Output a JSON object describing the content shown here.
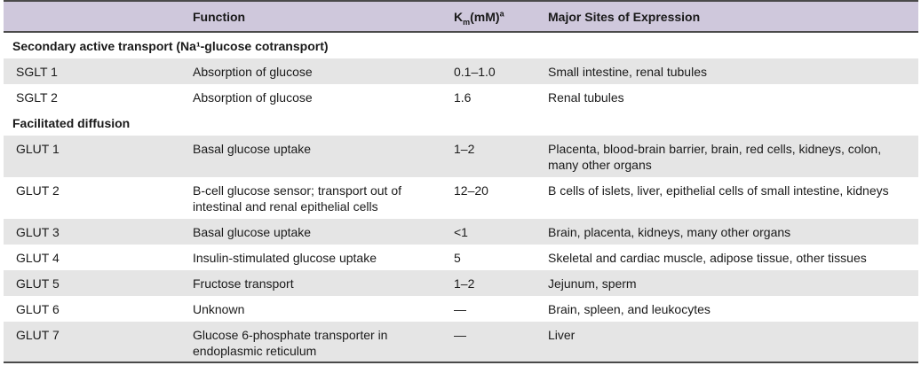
{
  "headers": {
    "col1": "",
    "col2": "Function",
    "col3_main": "K",
    "col3_sub": "m",
    "col3_rest": "(mM)",
    "col3_sup": "a",
    "col4": "Major Sites of Expression"
  },
  "sections": [
    {
      "title": "Secondary active transport (Na¹-glucose cotransport)",
      "rows": [
        {
          "name": "SGLT 1",
          "function": "Absorption of glucose",
          "km": "0.1–1.0",
          "sites": "Small intestine, renal tubules"
        },
        {
          "name": "SGLT 2",
          "function": "Absorption of glucose",
          "km": "1.6",
          "sites": "Renal tubules"
        }
      ]
    },
    {
      "title": "Facilitated diffusion",
      "rows": [
        {
          "name": "GLUT 1",
          "function": "Basal glucose uptake",
          "km": "1–2",
          "sites": "Placenta, blood-brain barrier, brain, red cells, kidneys, colon, many other organs"
        },
        {
          "name": "GLUT 2",
          "function": "B-cell glucose sensor; transport out of intestinal and renal epithelial cells",
          "km": "12–20",
          "sites": "B cells of islets, liver, epithelial cells of small intestine, kidneys"
        },
        {
          "name": "GLUT 3",
          "function": "Basal glucose uptake",
          "km": "<1",
          "sites": "Brain, placenta, kidneys, many other organs"
        },
        {
          "name": "GLUT 4",
          "function": "Insulin-stimulated glucose uptake",
          "km": "5",
          "sites": "Skeletal and cardiac muscle, adipose tissue, other tissues"
        },
        {
          "name": "GLUT 5",
          "function": "Fructose transport",
          "km": "1–2",
          "sites": "Jejunum, sperm"
        },
        {
          "name": "GLUT 6",
          "function": "Unknown",
          "km": "—",
          "sites": "Brain, spleen, and leukocytes"
        },
        {
          "name": "GLUT 7",
          "function": "Glucose 6-phosphate transporter in endoplasmic reticulum",
          "km": "—",
          "sites": "Liver"
        }
      ]
    }
  ]
}
